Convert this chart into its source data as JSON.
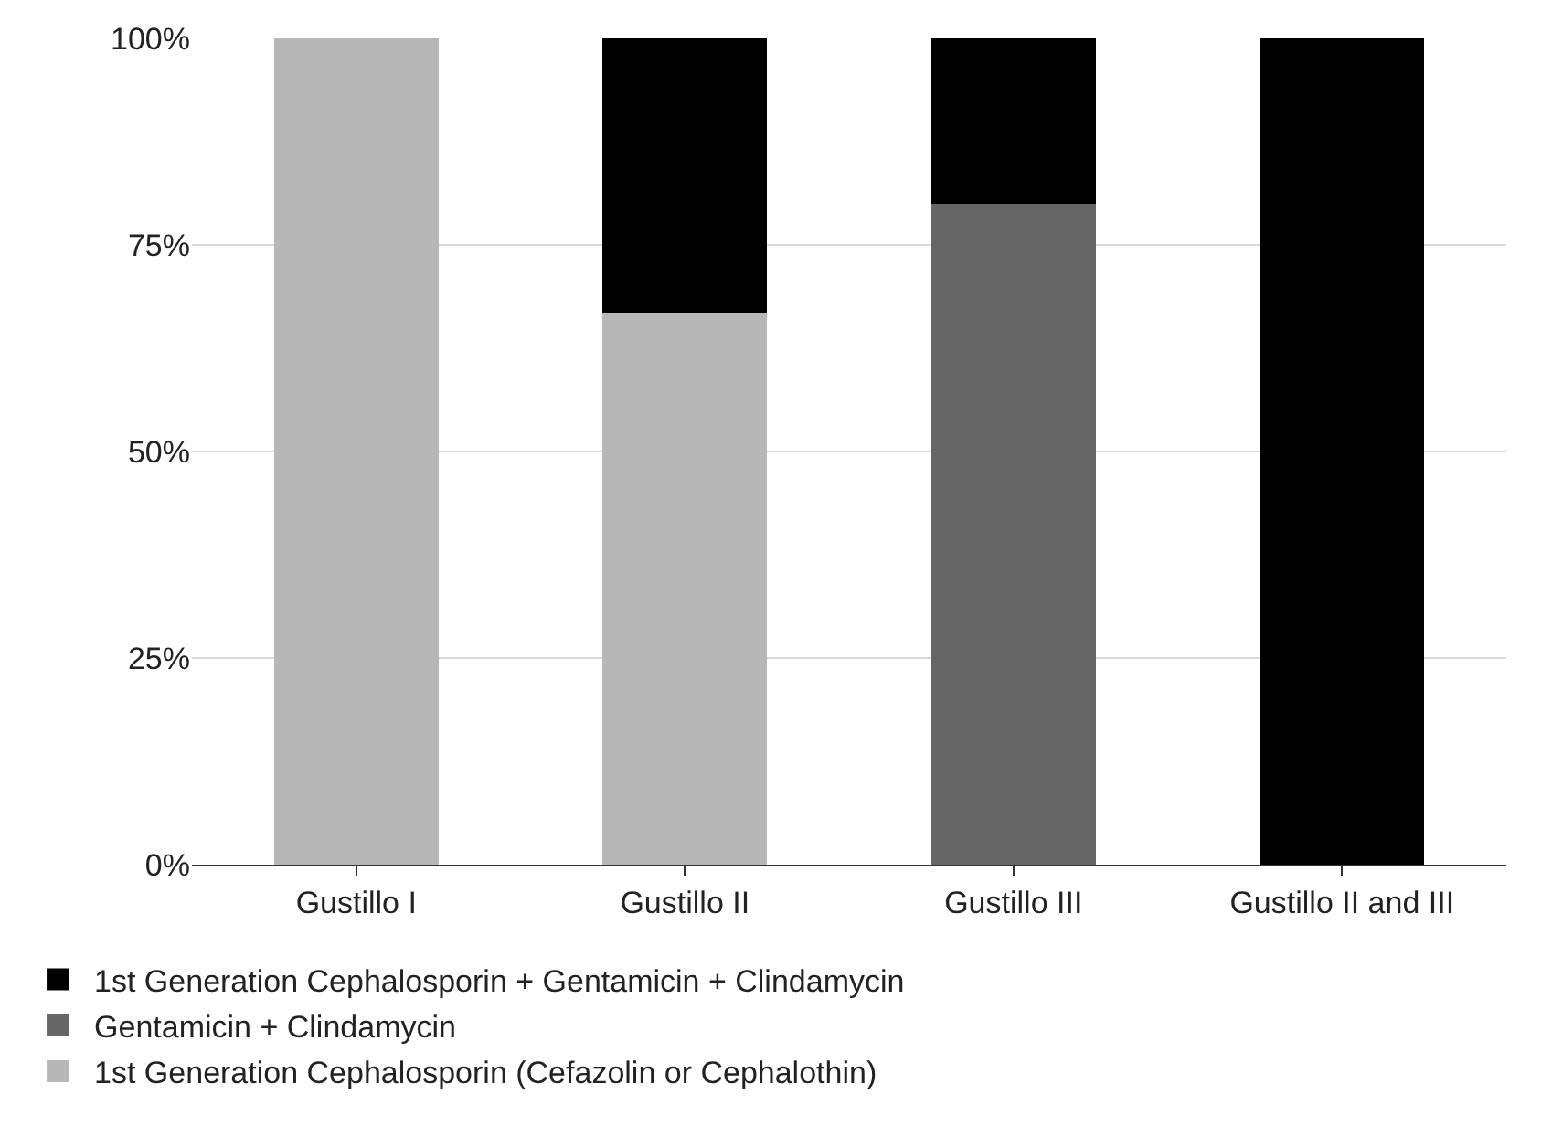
{
  "chart_data": {
    "type": "bar",
    "stacked": true,
    "categories": [
      "Gustillo I",
      "Gustillo II",
      "Gustillo III",
      "Gustillo II and III"
    ],
    "series": [
      {
        "name": "1st Generation Cephalosporin (Cefazolin or Cephalothin)",
        "color": "#b7b7b7",
        "values": [
          100,
          66.7,
          0,
          0
        ]
      },
      {
        "name": "Gentamicin + Clindamycin",
        "color": "#666666",
        "values": [
          0,
          0,
          80,
          0
        ]
      },
      {
        "name": "1st Generation Cephalosporin + Gentamicin + Clindamycin",
        "color": "#000000",
        "values": [
          0,
          33.3,
          20,
          100
        ]
      }
    ],
    "ylim": [
      0,
      100
    ],
    "yticks": [
      {
        "value": 0,
        "label": "0%"
      },
      {
        "value": 25,
        "label": "25%"
      },
      {
        "value": 50,
        "label": "50%"
      },
      {
        "value": 75,
        "label": "75%"
      },
      {
        "value": 100,
        "label": "100%"
      }
    ],
    "grid": "y",
    "legend": "bottom"
  }
}
